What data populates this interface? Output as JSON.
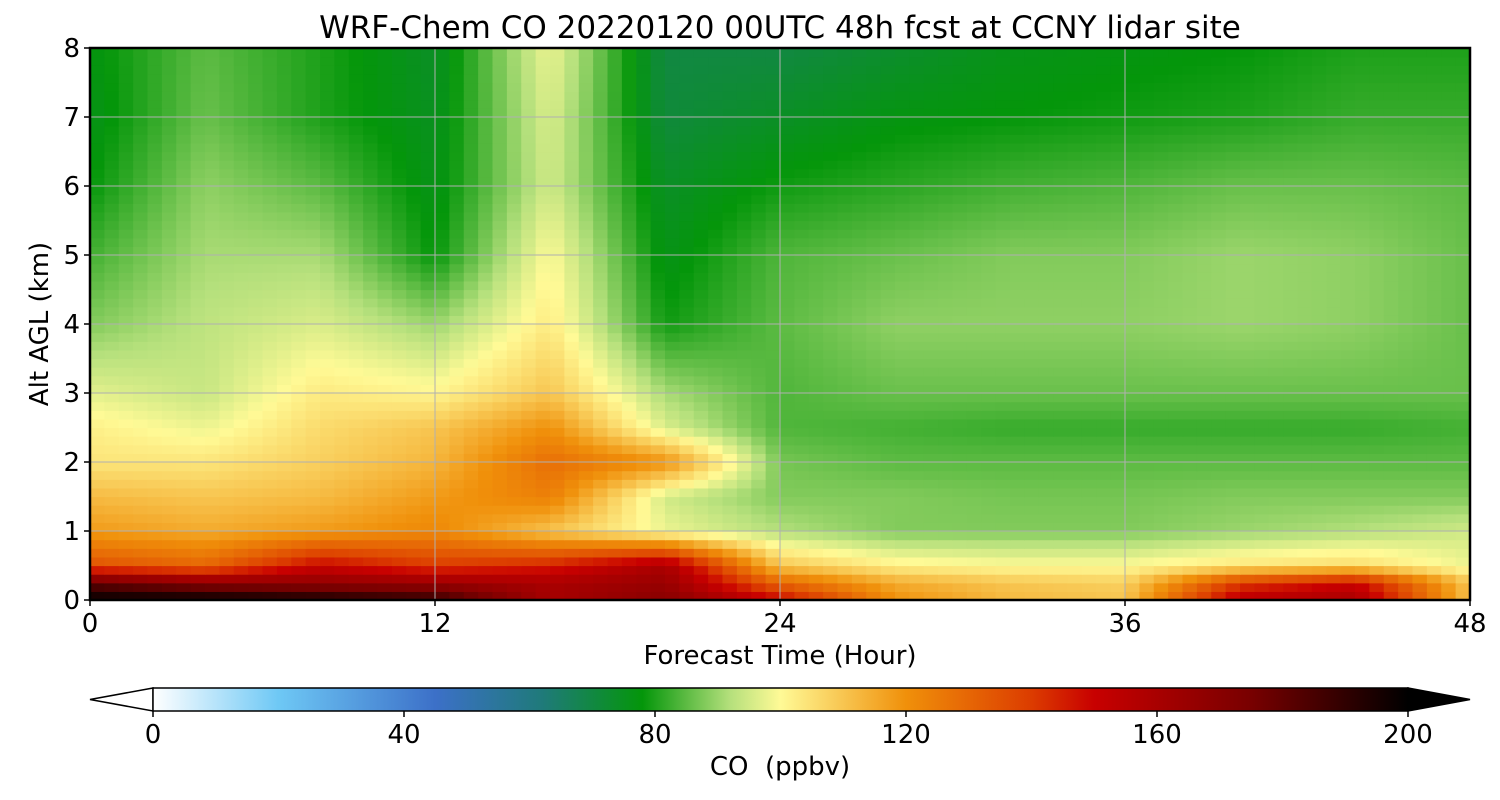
{
  "chart_data": {
    "type": "heatmap",
    "title": "WRF-Chem CO  20220120 00UTC 48h fcst at CCNY lidar site",
    "xlabel": "Forecast Time (Hour)",
    "ylabel": "Alt AGL (km)",
    "xlim": [
      0,
      48
    ],
    "ylim": [
      0,
      8
    ],
    "xticks": [
      0,
      12,
      24,
      36,
      48
    ],
    "yticks": [
      0,
      1,
      2,
      3,
      4,
      5,
      6,
      7,
      8
    ],
    "grid": true,
    "x": [
      0,
      4,
      8,
      12,
      16,
      20,
      24,
      28,
      32,
      36,
      40,
      44,
      48
    ],
    "y": [
      0,
      0.25,
      0.5,
      1,
      1.5,
      2,
      2.5,
      3,
      4,
      5,
      6,
      7,
      8
    ],
    "z": [
      [
        200,
        200,
        196,
        190,
        160,
        170,
        150,
        120,
        112,
        110,
        155,
        160,
        110
      ],
      [
        180,
        170,
        168,
        165,
        160,
        165,
        130,
        115,
        110,
        108,
        140,
        150,
        110
      ],
      [
        135,
        130,
        150,
        140,
        145,
        160,
        110,
        102,
        100,
        100,
        104,
        106,
        98
      ],
      [
        118,
        115,
        118,
        122,
        110,
        98,
        92,
        88,
        88,
        88,
        90,
        92,
        95
      ],
      [
        112,
        110,
        112,
        118,
        124,
        95,
        88,
        88,
        87,
        87,
        88,
        88,
        88
      ],
      [
        104,
        104,
        108,
        113,
        128,
        120,
        87,
        85,
        85,
        85,
        85,
        85,
        85
      ],
      [
        102,
        98,
        106,
        110,
        120,
        96,
        84,
        83,
        82,
        82,
        82,
        82,
        83
      ],
      [
        97,
        94,
        103,
        101,
        110,
        91,
        84,
        86,
        86,
        86,
        86,
        86,
        86
      ],
      [
        88,
        93,
        96,
        90,
        103,
        79,
        85,
        89,
        89,
        89,
        90,
        89,
        86
      ],
      [
        83,
        91,
        91,
        78,
        100,
        76,
        84,
        86,
        88,
        88,
        90,
        89,
        86
      ],
      [
        78,
        89,
        85,
        76,
        95,
        74,
        79,
        81,
        83,
        84,
        86,
        86,
        85
      ],
      [
        76,
        86,
        80,
        75,
        96,
        71,
        74,
        77,
        78,
        79,
        80,
        82,
        82
      ],
      [
        77,
        85,
        80,
        74,
        98,
        70,
        70,
        73,
        76,
        77,
        78,
        80,
        80
      ]
    ],
    "colorbar": {
      "label": "CO  (ppbv)",
      "min": 0,
      "max": 200,
      "ticks": [
        0,
        40,
        80,
        120,
        160,
        200
      ],
      "extend": "both",
      "colors": [
        {
          "v": 0,
          "c": "#ffffff"
        },
        {
          "v": 20,
          "c": "#6ec8f5"
        },
        {
          "v": 45,
          "c": "#3c70c8"
        },
        {
          "v": 62,
          "c": "#1f7a7a"
        },
        {
          "v": 78,
          "c": "#04960a"
        },
        {
          "v": 92,
          "c": "#b5e07c"
        },
        {
          "v": 100,
          "c": "#fffa96"
        },
        {
          "v": 120,
          "c": "#f0900a"
        },
        {
          "v": 140,
          "c": "#dc3c00"
        },
        {
          "v": 150,
          "c": "#c80000"
        },
        {
          "v": 175,
          "c": "#780000"
        },
        {
          "v": 200,
          "c": "#000000"
        }
      ]
    }
  }
}
